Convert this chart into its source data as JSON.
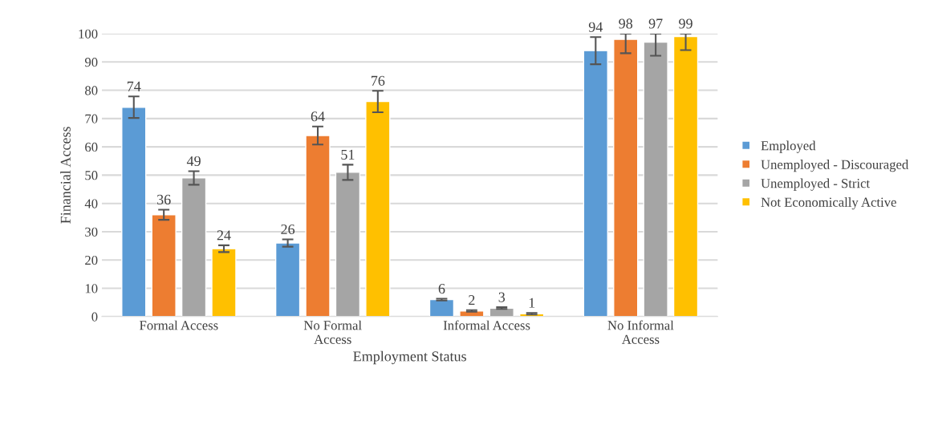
{
  "chart_data": {
    "type": "bar",
    "xlabel": "Employment Status",
    "ylabel": "Financial Access",
    "categories": [
      "Formal Access",
      "No Formal\nAccess",
      "Informal Access",
      "No Informal\nAccess"
    ],
    "series": [
      {
        "name": "Employed",
        "color": "#5b9bd5",
        "values": [
          74,
          26,
          6,
          94
        ],
        "errors": [
          3.8,
          1.3,
          0.3,
          [
            89.2,
            98.8
          ]
        ]
      },
      {
        "name": "Unemployed - Discouraged",
        "color": "#ed7d31",
        "values": [
          36,
          64,
          2,
          98
        ],
        "errors": [
          1.8,
          3.2,
          0.3,
          [
            93.1,
            100
          ]
        ]
      },
      {
        "name": "Unemployed - Strict",
        "color": "#a5a5a5",
        "values": [
          49,
          51,
          3,
          97
        ],
        "errors": [
          2.4,
          2.7,
          0.3,
          [
            92.2,
            100
          ]
        ]
      },
      {
        "name": "Not Economically Active",
        "color": "#ffc000",
        "values": [
          24,
          76,
          1,
          99
        ],
        "errors": [
          1.2,
          3.8,
          0.3,
          [
            94.2,
            100
          ]
        ]
      }
    ],
    "ylim": [
      0,
      100
    ],
    "yticks": [
      0,
      10,
      20,
      30,
      40,
      50,
      60,
      70,
      80,
      90,
      100
    ],
    "grid": "y",
    "legend": "right",
    "data_labels": true
  }
}
